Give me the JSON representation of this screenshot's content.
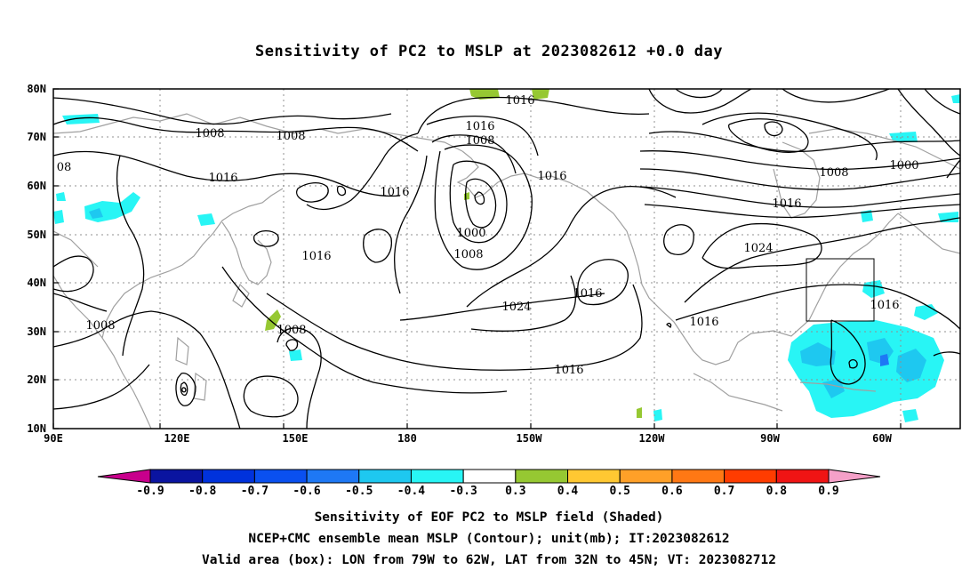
{
  "title": "Sensitivity of PC2 to MSLP at 2023082612 +0.0 day",
  "map": {
    "lon_labels": [
      "90E",
      "120E",
      "150E",
      "180",
      "150W",
      "120W",
      "90W",
      "60W"
    ],
    "lat_labels": [
      "80N",
      "70N",
      "60N",
      "50N",
      "40N",
      "30N",
      "20N",
      "10N"
    ],
    "lon_range": [
      90,
      310
    ],
    "lat_range": [
      10,
      80
    ],
    "grid": "dotted",
    "coastline_color": "#a0a0a0",
    "contour_color": "#000000",
    "contour_labels": [
      "1016",
      "1016",
      "1008",
      "1008",
      "1008",
      "1016",
      "1016",
      "1016",
      "1000",
      "1008",
      "1016",
      "1008",
      "1000",
      "1016",
      "1024",
      "1016",
      "1024",
      "1016",
      "1016",
      "1008",
      "1008",
      "1016",
      "08"
    ],
    "valid_box": {
      "lon": [
        -79,
        -62
      ],
      "lat": [
        32,
        45
      ]
    }
  },
  "colorbar": {
    "colors": [
      "#c8008c",
      "#0a14a0",
      "#0032dc",
      "#0a50f0",
      "#1e78f5",
      "#1ec8f0",
      "#28f5f5",
      "#ffffff",
      "#96c832",
      "#ffc832",
      "#ffa028",
      "#ff7814",
      "#ff3c00",
      "#f01414",
      "#f5a0c8"
    ],
    "labels": [
      "-0.9",
      "-0.8",
      "-0.7",
      "-0.6",
      "-0.5",
      "-0.4",
      "-0.3",
      "0.3",
      "0.4",
      "0.5",
      "0.6",
      "0.7",
      "0.8",
      "0.9"
    ]
  },
  "captions": [
    "Sensitivity of EOF PC2 to MSLP field (Shaded)",
    "NCEP+CMC ensemble mean MSLP (Contour); unit(mb); IT:2023082612",
    "Valid area (box): LON from 79W to 62W, LAT from 32N to 45N; VT: 2023082712"
  ]
}
